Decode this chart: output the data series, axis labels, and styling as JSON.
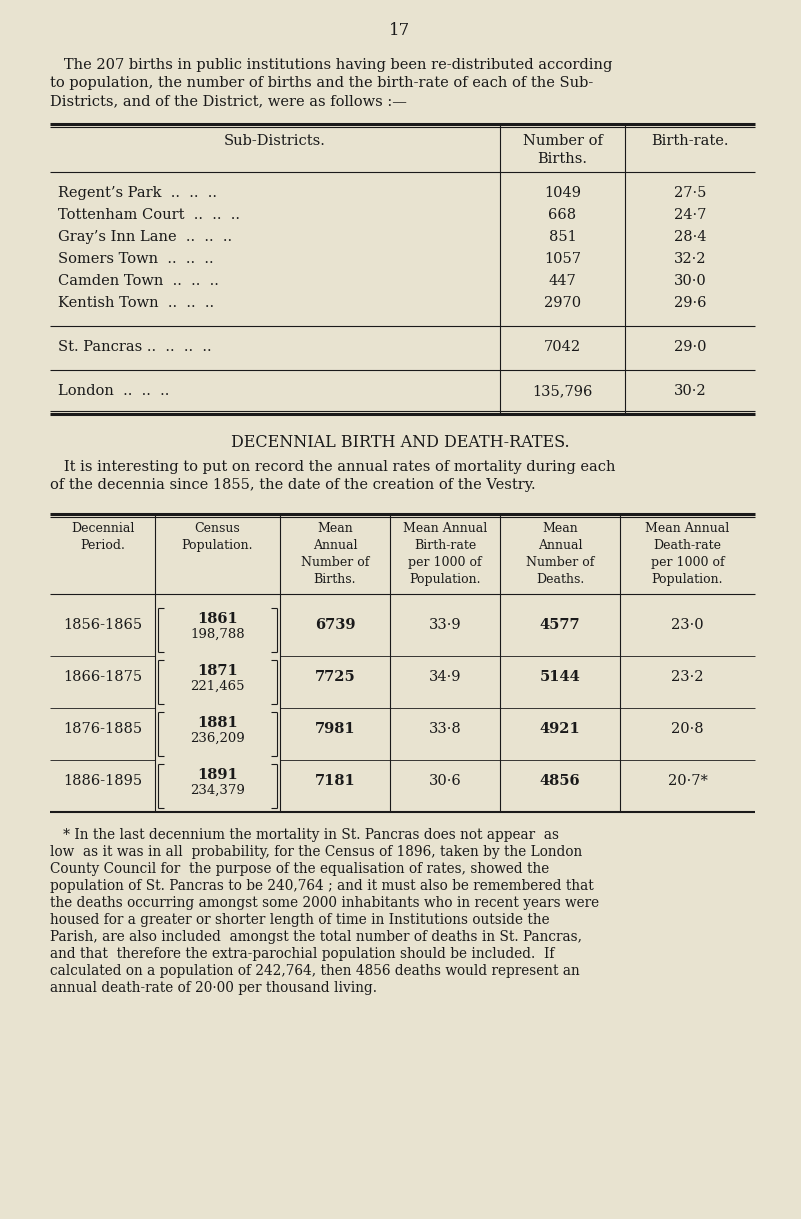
{
  "page_number": "17",
  "bg_color": "#e8e3d0",
  "text_color": "#1a1a1a",
  "intro_text_line1": "   The 207 births in public institutions having been re-distributed according",
  "intro_text_line2": "to population, the number of births and the birth-rate of each of the Sub-",
  "intro_text_line3": "Districts, and of the District, were as follows :—",
  "table1_header_col1": "Sub-Districts.",
  "table1_header_col2": "Number of\nBirths.",
  "table1_header_col3": "Birth-rate.",
  "table1_rows": [
    [
      "Regent’s Park",
      "..",
      "..",
      "..",
      "1049",
      "27·5"
    ],
    [
      "Tottenham Court",
      "..",
      "..",
      "..",
      "668",
      "24·7"
    ],
    [
      "Gray’s Inn Lane",
      "..",
      "..",
      "..",
      "851",
      "28·4"
    ],
    [
      "Somers Town",
      "..",
      "..",
      "..",
      "1057",
      "32·2"
    ],
    [
      "Camden Town",
      "..",
      "..",
      "..",
      "447",
      "30·0"
    ],
    [
      "Kentish Town",
      "..",
      "..",
      "..",
      "2970",
      "29·6"
    ]
  ],
  "table1_sp": [
    "St. Pancras ..",
    "..",
    "..",
    "..",
    "7042",
    "29·0"
  ],
  "table1_london": [
    "London",
    "..",
    "..",
    "..",
    "135,796",
    "30·2"
  ],
  "section_title": "DECENNIAL BIRTH AND DEATH-RATES.",
  "section_intro_line1": "   It is interesting to put on record the annual rates of mortality during each",
  "section_intro_line2": "of the decennia since 1855, the date of the creation of the Vestry.",
  "t2_hdr": [
    "Decennial\nPeriod.",
    "Census\nPopulation.",
    "Mean\nAnnual\nNumber of\nBirths.",
    "Mean Annual\nBirth-rate\nper 1000 of\nPopulation.",
    "Mean\nAnnual\nNumber of\nDeaths.",
    "Mean Annual\nDeath-rate\nper 1000 of\nPopulation."
  ],
  "t2_rows": [
    [
      "1856-1865",
      "1861",
      "198,788",
      "6739",
      "33·9",
      "4577",
      "23·0"
    ],
    [
      "1866-1875",
      "1871",
      "221,465",
      "7725",
      "34·9",
      "5144",
      "23·2"
    ],
    [
      "1876-1885",
      "1881",
      "236,209",
      "7981",
      "33·8",
      "4921",
      "20·8"
    ],
    [
      "1886-1895",
      "1891",
      "234,379",
      "7181",
      "30·6",
      "4856",
      "20·7*"
    ]
  ],
  "footnote_lines": [
    "   * In the last decennium the mortality in St. Pancras does not appear  as",
    "low  as it was in all  probability, for the Census of 1896, taken by the London",
    "County Council for  the purpose of the equalisation of rates, showed the",
    "population of St. Pancras to be 240,764 ; and it must also be remembered that",
    "the deaths occurring amongst some 2000 inhabitants who in recent years were",
    "housed for a greater or shorter length of time in Institutions outside the",
    "Parish, are also included  amongst the total number of deaths in St. Pancras,",
    "and that  therefore the extra-parochial population should be included.  If",
    "calculated on a population of 242,764, then 4856 deaths would represent an",
    "annual death-rate of 20·00 per thousand living."
  ]
}
